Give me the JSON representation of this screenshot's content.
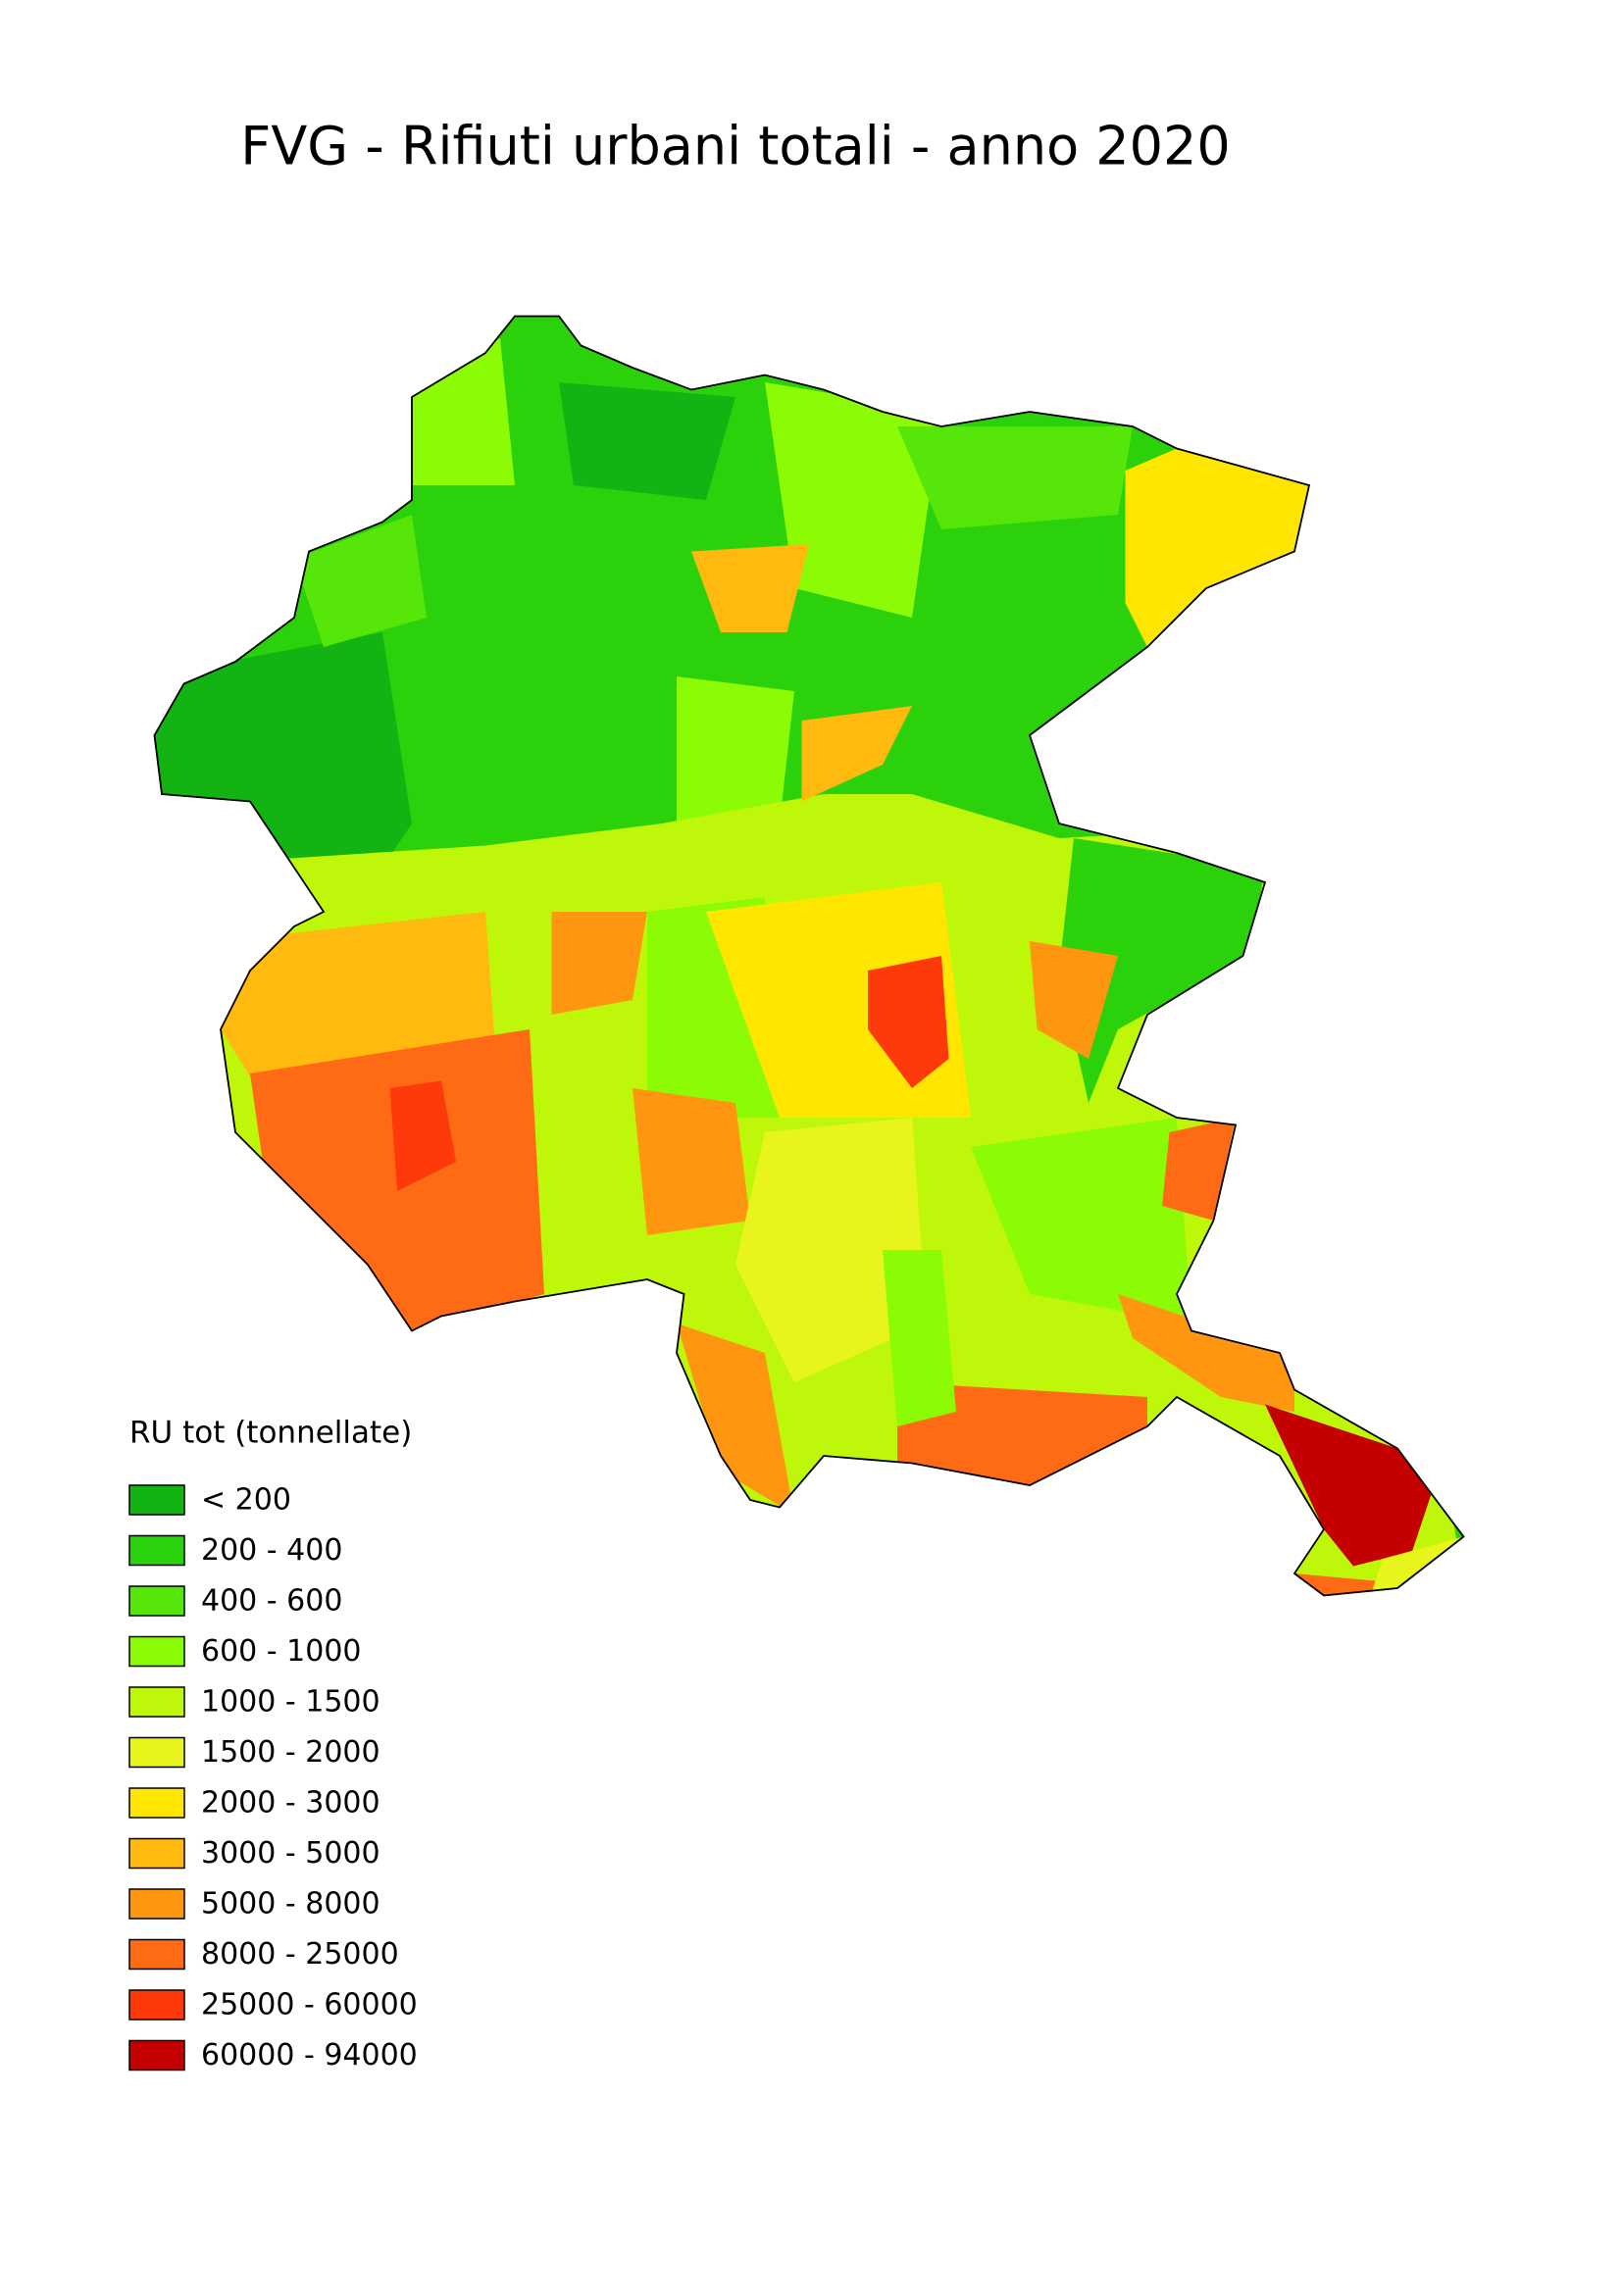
{
  "title": "FVG - Rifiuti urbani totali - anno 2020",
  "legend": {
    "title": "RU tot (tonnellate)",
    "items": [
      {
        "label": "< 200",
        "color": "#12b312"
      },
      {
        "label": "200 - 400",
        "color": "#2bd10a"
      },
      {
        "label": "400 - 600",
        "color": "#56e60a"
      },
      {
        "label": "600 - 1000",
        "color": "#8cfc06"
      },
      {
        "label": "1000 - 1500",
        "color": "#bff70a"
      },
      {
        "label": "1500 - 2000",
        "color": "#e8f51c"
      },
      {
        "label": "2000 - 3000",
        "color": "#ffe600"
      },
      {
        "label": "3000 - 5000",
        "color": "#ffb90f"
      },
      {
        "label": "5000 - 8000",
        "color": "#ff960f"
      },
      {
        "label": "8000 - 25000",
        "color": "#ff6a14"
      },
      {
        "label": "25000 - 60000",
        "color": "#ff3a0a"
      },
      {
        "label": "60000 - 94000",
        "color": "#c40000"
      }
    ]
  }
}
